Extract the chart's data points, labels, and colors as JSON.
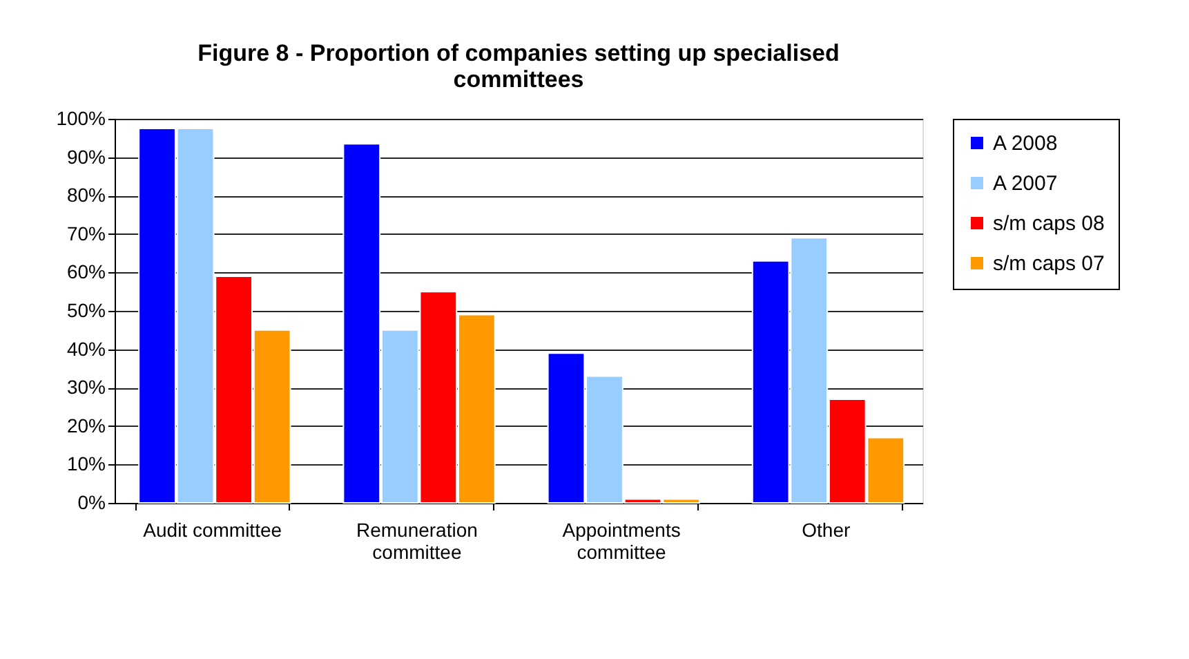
{
  "chart_data": {
    "type": "bar",
    "title": "Figure 8 - Proportion of companies setting up specialised\ncommittees",
    "categories": [
      "Audit committee",
      "Remuneration\ncommittee",
      "Appointments\ncommittee",
      "Other"
    ],
    "series": [
      {
        "name": "A 2008",
        "color": "#0000ff",
        "values": [
          97.5,
          93.5,
          39,
          63
        ]
      },
      {
        "name": "A 2007",
        "color": "#99ccff",
        "values": [
          97.5,
          45,
          33,
          69
        ]
      },
      {
        "name": "s/m caps 08",
        "color": "#ff0000",
        "values": [
          59,
          55,
          1,
          27
        ]
      },
      {
        "name": "s/m caps 07",
        "color": "#ff9900",
        "values": [
          45,
          49,
          1,
          17
        ]
      }
    ],
    "ylim": [
      0,
      100
    ],
    "yticks": [
      {
        "value": 0,
        "label": "0%"
      },
      {
        "value": 10,
        "label": "10%"
      },
      {
        "value": 20,
        "label": "20%"
      },
      {
        "value": 30,
        "label": "30%"
      },
      {
        "value": 40,
        "label": "40%"
      },
      {
        "value": 50,
        "label": "50%"
      },
      {
        "value": 60,
        "label": "60%"
      },
      {
        "value": 70,
        "label": "70%"
      },
      {
        "value": 80,
        "label": "80%"
      },
      {
        "value": 90,
        "label": "90%"
      },
      {
        "value": 100,
        "label": "100%"
      }
    ],
    "grid": "y",
    "legend": "right"
  }
}
